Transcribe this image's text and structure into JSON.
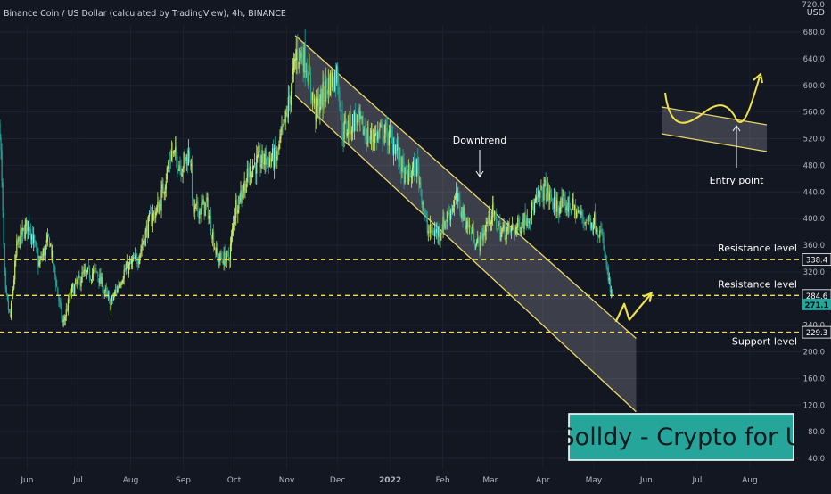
{
  "header": {
    "title": "Binance Coin / US Dollar (calculated by TradingView), 4h, BINANCE"
  },
  "axis": {
    "currency": "USD",
    "top_tick_partial": "720.0"
  },
  "watermark": {
    "text": "Solldy - Crypto for U"
  },
  "colors": {
    "background": "#131722",
    "candle_up": "#c7e86b",
    "candle_down": "#26a69a",
    "channel": "#e8d66a",
    "annotation": "#f2e24a",
    "text": "#ffffff",
    "axis_text": "#b2b5be",
    "watermark_bg": "#26a69a"
  },
  "chart_data": {
    "type": "candlestick",
    "title": "Binance Coin / US Dollar (calculated by TradingView), 4h, BINANCE",
    "y_unit": "USD",
    "ylim": [
      29,
      730
    ],
    "y_ticks": [
      40.0,
      80.0,
      120.0,
      160.0,
      200.0,
      240.0,
      280.0,
      320.0,
      360.0,
      400.0,
      440.0,
      480.0,
      520.0,
      560.0,
      600.0,
      640.0,
      680.0
    ],
    "x_ticks": [
      "Jun",
      "Jul",
      "Aug",
      "Sep",
      "Oct",
      "Nov",
      "Dec",
      "2022",
      "Feb",
      "Mar",
      "Apr",
      "May",
      "Jun",
      "Jul",
      "Aug"
    ],
    "x_range": [
      "2021-05-16",
      "2022-08-31"
    ],
    "last_data_date": "2022-05-12",
    "price_path": [
      [
        "2021-05-16",
        540
      ],
      [
        "2021-05-19",
        290
      ],
      [
        "2021-05-22",
        250
      ],
      [
        "2021-05-26",
        360
      ],
      [
        "2021-06-02",
        395
      ],
      [
        "2021-06-08",
        330
      ],
      [
        "2021-06-14",
        370
      ],
      [
        "2021-06-22",
        240
      ],
      [
        "2021-06-27",
        290
      ],
      [
        "2021-07-04",
        315
      ],
      [
        "2021-07-12",
        320
      ],
      [
        "2021-07-20",
        270
      ],
      [
        "2021-07-28",
        320
      ],
      [
        "2021-08-05",
        340
      ],
      [
        "2021-08-12",
        395
      ],
      [
        "2021-08-18",
        420
      ],
      [
        "2021-08-25",
        500
      ],
      [
        "2021-08-31",
        480
      ],
      [
        "2021-09-05",
        500
      ],
      [
        "2021-09-07",
        410
      ],
      [
        "2021-09-15",
        420
      ],
      [
        "2021-09-21",
        340
      ],
      [
        "2021-09-28",
        340
      ],
      [
        "2021-10-02",
        420
      ],
      [
        "2021-10-12",
        480
      ],
      [
        "2021-10-20",
        490
      ],
      [
        "2021-10-26",
        490
      ],
      [
        "2021-11-01",
        555
      ],
      [
        "2021-11-07",
        650
      ],
      [
        "2021-11-12",
        640
      ],
      [
        "2021-11-18",
        560
      ],
      [
        "2021-11-25",
        600
      ],
      [
        "2021-12-01",
        620
      ],
      [
        "2021-12-04",
        530
      ],
      [
        "2021-12-12",
        550
      ],
      [
        "2021-12-20",
        520
      ],
      [
        "2021-12-28",
        530
      ],
      [
        "2022-01-04",
        510
      ],
      [
        "2022-01-10",
        460
      ],
      [
        "2022-01-17",
        480
      ],
      [
        "2022-01-23",
        380
      ],
      [
        "2022-01-30",
        380
      ],
      [
        "2022-02-09",
        430
      ],
      [
        "2022-02-14",
        400
      ],
      [
        "2022-02-22",
        360
      ],
      [
        "2022-03-02",
        410
      ],
      [
        "2022-03-07",
        380
      ],
      [
        "2022-03-16",
        385
      ],
      [
        "2022-03-25",
        410
      ],
      [
        "2022-04-02",
        445
      ],
      [
        "2022-04-08",
        420
      ],
      [
        "2022-04-17",
        420
      ],
      [
        "2022-04-25",
        400
      ],
      [
        "2022-05-02",
        395
      ],
      [
        "2022-05-06",
        370
      ],
      [
        "2022-05-09",
        320
      ],
      [
        "2022-05-12",
        271.1
      ]
    ],
    "last_price": 271.1,
    "price_labels": [
      338.4,
      284.6,
      271.1,
      229.3
    ],
    "levels": [
      {
        "name": "Resistance level",
        "price": 338.4
      },
      {
        "name": "Resistance level",
        "price": 284.6
      },
      {
        "name": "Support level",
        "price": 229.3
      }
    ],
    "channel": {
      "upper_start": [
        "2021-11-06",
        675
      ],
      "upper_end": [
        "2022-05-26",
        220
      ],
      "lower_start": [
        "2021-11-06",
        585
      ],
      "lower_end": [
        "2022-05-26",
        110
      ]
    },
    "projection": [
      [
        "2022-05-14",
        245
      ],
      [
        "2022-05-19",
        272
      ],
      [
        "2022-05-22",
        248
      ],
      [
        "2022-06-04",
        288
      ]
    ],
    "annotations": [
      {
        "text": "Downtrend"
      },
      {
        "text": "Entry point"
      },
      {
        "text": "Resistance level"
      },
      {
        "text": "Resistance level"
      },
      {
        "text": "Support level"
      }
    ]
  }
}
